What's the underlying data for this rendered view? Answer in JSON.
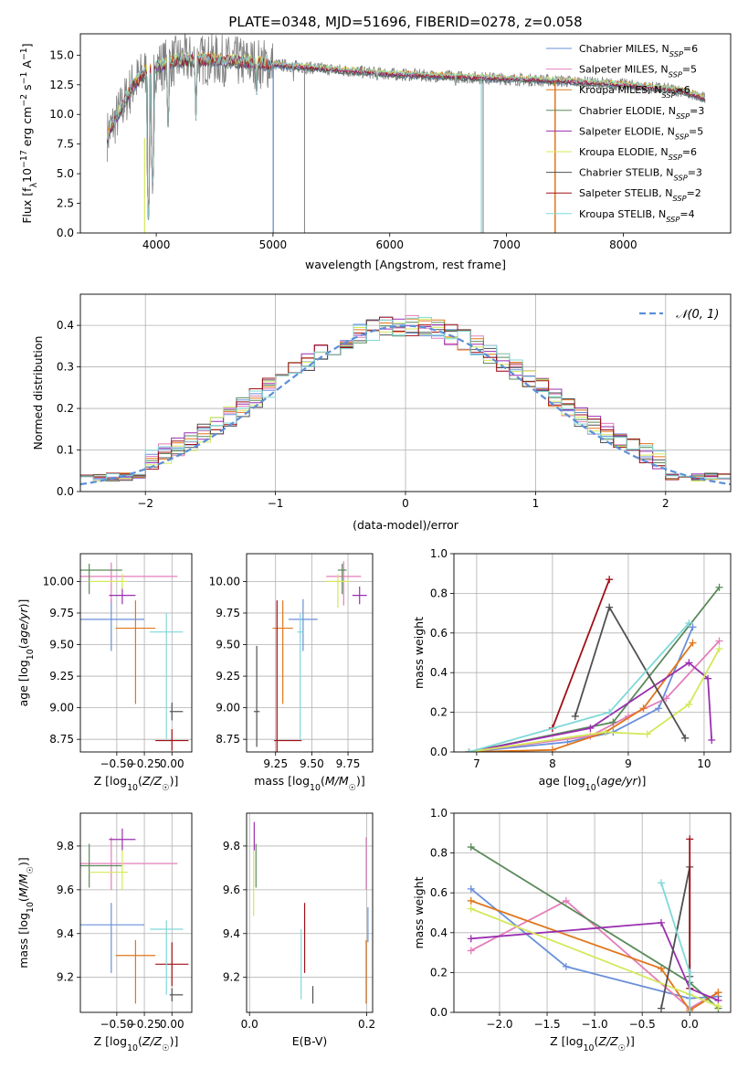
{
  "colors": {
    "chabrier_miles": "#6a8fd8",
    "salpeter_miles": "#e47ebb",
    "kroupa_miles": "#e0761c",
    "chabrier_elodie": "#5a8a5a",
    "salpeter_elodie": "#9a2fb0",
    "kroupa_elodie": "#d4e85a",
    "chabrier_stelib": "#505050",
    "salpeter_stelib": "#a01018",
    "kroupa_stelib": "#80d8d8",
    "data": "#808080",
    "normal": "#5b8fd8"
  },
  "chart_data": [
    {
      "id": "spectrum",
      "type": "line",
      "title": "PLATE=0348, MJD=51696, FIBERID=0278, z=0.058",
      "xlabel": "wavelength [Angstrom, rest frame]",
      "ylabel": "Flux [f_λ10^-17 erg cm^-2 s^-1 A^-1]",
      "xlim": [
        3350,
        8920
      ],
      "ylim": [
        0,
        16.8
      ],
      "xticks": [
        4000,
        5000,
        6000,
        7000,
        8000
      ],
      "yticks": [
        0.0,
        2.5,
        5.0,
        7.5,
        10.0,
        12.5,
        15.0
      ],
      "legend_position": "top-right",
      "series": [
        {
          "name": "Chabrier MILES, N_SSP=6"
        },
        {
          "name": "Salpeter MILES, N_SSP=5"
        },
        {
          "name": "Kroupa MILES, N_SSP=6"
        },
        {
          "name": "Chabrier ELODIE, N_SSP=3"
        },
        {
          "name": "Salpeter ELODIE, N_SSP=5"
        },
        {
          "name": "Kroupa ELODIE, N_SSP=6"
        },
        {
          "name": "Chabrier STELIB, N_SSP=3"
        },
        {
          "name": "Salpeter STELIB, N_SSP=2"
        },
        {
          "name": "Kroupa STELIB, N_SSP=4"
        }
      ],
      "continuum": [
        [
          3580,
          8.2
        ],
        [
          3700,
          10.5
        ],
        [
          3800,
          12.5
        ],
        [
          3900,
          13.5
        ],
        [
          4000,
          14.0
        ],
        [
          4200,
          14.6
        ],
        [
          4500,
          14.6
        ],
        [
          5000,
          14.2
        ],
        [
          5500,
          13.8
        ],
        [
          6000,
          13.4
        ],
        [
          6500,
          13.2
        ],
        [
          7000,
          13.0
        ],
        [
          7500,
          12.8
        ],
        [
          8000,
          12.5
        ],
        [
          8500,
          12.0
        ],
        [
          8700,
          11.3
        ]
      ],
      "model_absorptions": [
        [
          3934,
          0.2
        ],
        [
          3969,
          2.8
        ],
        [
          4102,
          8.0
        ],
        [
          4340,
          9.5
        ],
        [
          4861,
          11.2
        ],
        [
          5175,
          12.3
        ],
        [
          5890,
          12.0
        ],
        [
          6563,
          12.0
        ],
        [
          7050,
          12.2
        ]
      ],
      "model_spikes": [
        [
          5002,
          0.0
        ],
        [
          6785,
          0.0
        ],
        [
          7415,
          0.0
        ]
      ],
      "data_spikes": [
        [
          5002,
          0.0
        ],
        [
          5270,
          0.0
        ],
        [
          6800,
          0.0
        ],
        [
          7418,
          0.0
        ]
      ]
    },
    {
      "id": "residuals",
      "type": "histogram",
      "xlabel": "(data-model)/error",
      "ylabel": "Normed distribution",
      "xlim": [
        -2.5,
        2.5
      ],
      "ylim": [
        0,
        0.475
      ],
      "xticks": [
        -2,
        -1,
        0,
        1,
        2
      ],
      "yticks": [
        0.0,
        0.1,
        0.2,
        0.3,
        0.4
      ],
      "grid": true,
      "legend_position": "top-right",
      "reference_curve": {
        "name": "𝒩(0, 1)",
        "mean": 0,
        "sd": 1
      }
    },
    {
      "id": "age-vs-Z",
      "type": "errorbar",
      "xlabel": "Z [log10(Z/Z☉)]",
      "ylabel": "age [log10(age/yr)]",
      "xlim": [
        -0.83,
        0.18
      ],
      "ylim": [
        8.65,
        10.22
      ],
      "xticks": [
        -0.5,
        -0.25,
        0.0
      ],
      "yticks": [
        8.75,
        9.0,
        9.25,
        9.5,
        9.75,
        10.0
      ],
      "points": [
        {
          "x": -0.55,
          "xerr": [
            0.3,
            0.3
          ],
          "y": 9.7,
          "yerr": [
            0.25,
            0.16
          ]
        },
        {
          "x": -0.55,
          "xerr": [
            0.3,
            0.6
          ],
          "y": 10.04,
          "yerr": [
            0.21,
            0.11
          ]
        },
        {
          "x": -0.33,
          "xerr": [
            0.18,
            0.18
          ],
          "y": 9.63,
          "yerr": [
            0.6,
            0.22
          ]
        },
        {
          "x": -0.75,
          "xerr": [
            0.08,
            0.3
          ],
          "y": 10.09,
          "yerr": [
            0.19,
            0.05
          ]
        },
        {
          "x": -0.45,
          "xerr": [
            0.12,
            0.12
          ],
          "y": 9.89,
          "yerr": [
            0.07,
            0.07
          ]
        },
        {
          "x": -0.45,
          "xerr": [
            0.3,
            0.05
          ],
          "y": 10.0,
          "yerr": [
            0.06,
            0.06
          ]
        },
        {
          "x": 0.0,
          "xerr": [
            0.02,
            0.1
          ],
          "y": 8.97,
          "yerr": [
            0.07,
            0.07
          ]
        },
        {
          "x": 0.0,
          "xerr": [
            0.15,
            0.15
          ],
          "y": 8.74,
          "yerr": [
            0.08,
            0.09
          ]
        },
        {
          "x": -0.05,
          "xerr": [
            0.15,
            0.15
          ],
          "y": 9.6,
          "yerr": [
            0.85,
            0.15
          ]
        }
      ]
    },
    {
      "id": "age-vs-mass",
      "type": "errorbar",
      "xlabel": "mass [log10(M/M☉)]",
      "ylabel": "",
      "xlim": [
        9.05,
        9.92
      ],
      "ylim": [
        8.65,
        10.22
      ],
      "xticks": [
        9.25,
        9.5,
        9.75
      ],
      "yticks": [
        8.75,
        9.0,
        9.25,
        9.5,
        9.75,
        10.0
      ],
      "points": [
        {
          "x": 9.44,
          "xerr": [
            0.1,
            0.1
          ],
          "y": 9.7,
          "yerr": [
            0.25,
            0.16
          ]
        },
        {
          "x": 9.72,
          "xerr": [
            0.12,
            0.12
          ],
          "y": 10.04,
          "yerr": [
            0.23,
            0.12
          ]
        },
        {
          "x": 9.3,
          "xerr": [
            0.07,
            0.07
          ],
          "y": 9.63,
          "yerr": [
            0.6,
            0.22
          ]
        },
        {
          "x": 9.71,
          "xerr": [
            0.03,
            0.03
          ],
          "y": 10.09,
          "yerr": [
            0.19,
            0.05
          ]
        },
        {
          "x": 9.83,
          "xerr": [
            0.05,
            0.05
          ],
          "y": 9.89,
          "yerr": [
            0.07,
            0.07
          ]
        },
        {
          "x": 9.68,
          "xerr": [
            0.08,
            0.08
          ],
          "y": 10.0,
          "yerr": [
            0.21,
            0.06
          ]
        },
        {
          "x": 9.12,
          "xerr": [
            0.02,
            0.02
          ],
          "y": 8.97,
          "yerr": [
            0.28,
            0.52
          ]
        },
        {
          "x": 9.26,
          "xerr": [
            0.02,
            0.17
          ],
          "y": 8.74,
          "yerr": [
            0.09,
            1.11
          ]
        },
        {
          "x": 9.42,
          "xerr": [
            0.02,
            0.02
          ],
          "y": 9.6,
          "yerr": [
            0.85,
            0.15
          ]
        }
      ]
    },
    {
      "id": "weight-vs-age",
      "type": "line",
      "xlabel": "age [log10(age/yr)]",
      "ylabel": "mass weight",
      "xlim": [
        6.7,
        10.35
      ],
      "ylim": [
        0.0,
        1.0
      ],
      "xticks": [
        7,
        8,
        9,
        10
      ],
      "yticks": [
        0.0,
        0.2,
        0.4,
        0.6,
        0.8,
        1.0
      ],
      "grid": true,
      "series": [
        {
          "x": [
            6.9,
            8.2,
            8.8,
            9.4,
            9.85
          ],
          "y": [
            0.0,
            0.05,
            0.1,
            0.22,
            0.63
          ]
        },
        {
          "x": [
            6.9,
            8.5,
            9.0,
            9.5,
            10.2
          ],
          "y": [
            0.0,
            0.08,
            0.18,
            0.27,
            0.56
          ]
        },
        {
          "x": [
            6.9,
            8.0,
            8.7,
            9.2,
            9.85
          ],
          "y": [
            0.0,
            0.01,
            0.1,
            0.22,
            0.55
          ]
        },
        {
          "x": [
            6.9,
            8.8,
            10.2
          ],
          "y": [
            0.0,
            0.15,
            0.83
          ]
        },
        {
          "x": [
            6.9,
            8.5,
            9.8,
            10.05,
            10.1
          ],
          "y": [
            0.0,
            0.12,
            0.45,
            0.37,
            0.06
          ]
        },
        {
          "x": [
            6.9,
            8.7,
            9.25,
            9.8,
            10.2
          ],
          "y": [
            0.0,
            0.1,
            0.09,
            0.24,
            0.52
          ]
        },
        {
          "x": [
            8.3,
            8.75,
            9.75
          ],
          "y": [
            0.18,
            0.73,
            0.07
          ]
        },
        {
          "x": [
            8.0,
            8.75
          ],
          "y": [
            0.12,
            0.87
          ]
        },
        {
          "x": [
            6.9,
            8.75,
            9.8
          ],
          "y": [
            0.0,
            0.2,
            0.65
          ]
        }
      ]
    },
    {
      "id": "mass-vs-Z",
      "type": "errorbar",
      "xlabel": "Z [log10(Z/Z☉)]",
      "ylabel": "mass [log10(M/M☉)]",
      "xlim": [
        -0.83,
        0.18
      ],
      "ylim": [
        9.04,
        9.95
      ],
      "xticks": [
        -0.5,
        -0.25,
        0.0
      ],
      "yticks": [
        9.2,
        9.4,
        9.6,
        9.8
      ],
      "points": [
        {
          "x": -0.55,
          "xerr": [
            0.3,
            0.3
          ],
          "y": 9.44,
          "yerr": [
            0.22,
            0.1
          ]
        },
        {
          "x": -0.55,
          "xerr": [
            0.3,
            0.6
          ],
          "y": 9.72,
          "yerr": [
            0.12,
            0.12
          ]
        },
        {
          "x": -0.33,
          "xerr": [
            0.18,
            0.18
          ],
          "y": 9.3,
          "yerr": [
            0.22,
            0.07
          ]
        },
        {
          "x": -0.75,
          "xerr": [
            0.08,
            0.3
          ],
          "y": 9.71,
          "yerr": [
            0.1,
            0.1
          ]
        },
        {
          "x": -0.45,
          "xerr": [
            0.12,
            0.12
          ],
          "y": 9.83,
          "yerr": [
            0.05,
            0.05
          ]
        },
        {
          "x": -0.45,
          "xerr": [
            0.3,
            0.05
          ],
          "y": 9.68,
          "yerr": [
            0.08,
            0.1
          ]
        },
        {
          "x": 0.0,
          "xerr": [
            0.02,
            0.1
          ],
          "y": 9.12,
          "yerr": [
            0.03,
            0.03
          ]
        },
        {
          "x": 0.0,
          "xerr": [
            0.15,
            0.15
          ],
          "y": 9.26,
          "yerr": [
            0.1,
            0.1
          ]
        },
        {
          "x": -0.05,
          "xerr": [
            0.15,
            0.15
          ],
          "y": 9.42,
          "yerr": [
            0.3,
            0.04
          ]
        }
      ]
    },
    {
      "id": "mass-vs-EBV",
      "type": "errorbar",
      "xlabel": "E(B-V)",
      "ylabel": "",
      "xlim": [
        -0.005,
        0.21
      ],
      "ylim": [
        9.04,
        9.95
      ],
      "xticks": [
        0.0,
        0.2
      ],
      "yticks": [
        9.2,
        9.4,
        9.6,
        9.8
      ],
      "points": [
        {
          "x": 0.202,
          "y": 9.44,
          "yerr": [
            0.08,
            0.08
          ]
        },
        {
          "x": 0.199,
          "y": 9.72,
          "yerr": [
            0.12,
            0.12
          ]
        },
        {
          "x": 0.199,
          "y": 9.3,
          "yerr": [
            0.22,
            0.07
          ]
        },
        {
          "x": 0.011,
          "y": 9.71,
          "yerr": [
            0.1,
            0.1
          ]
        },
        {
          "x": 0.008,
          "y": 9.83,
          "yerr": [
            0.05,
            0.08
          ]
        },
        {
          "x": 0.007,
          "y": 9.68,
          "yerr": [
            0.2,
            0.1
          ]
        },
        {
          "x": 0.108,
          "y": 9.12,
          "yerr": [
            0.04,
            0.04
          ]
        },
        {
          "x": 0.094,
          "y": 9.38,
          "yerr": [
            0.16,
            0.16
          ]
        },
        {
          "x": 0.088,
          "y": 9.26,
          "yerr": [
            0.16,
            0.16
          ]
        }
      ]
    },
    {
      "id": "weight-vs-Z",
      "type": "line",
      "xlabel": "Z [log10(Z/Z☉)]",
      "ylabel": "mass weight",
      "xlim": [
        -2.48,
        0.43
      ],
      "ylim": [
        0.0,
        1.0
      ],
      "xticks": [
        -2.0,
        -1.5,
        -1.0,
        -0.5,
        0.0
      ],
      "yticks": [
        0.0,
        0.2,
        0.4,
        0.6,
        0.8,
        1.0
      ],
      "grid": true,
      "series": [
        {
          "x": [
            -2.3,
            -1.3,
            0.0,
            0.3
          ],
          "y": [
            0.62,
            0.23,
            0.07,
            0.08
          ]
        },
        {
          "x": [
            -2.3,
            -1.3,
            0.0,
            0.3
          ],
          "y": [
            0.31,
            0.56,
            0.02,
            0.1
          ]
        },
        {
          "x": [
            -2.3,
            -0.3,
            0.0,
            0.3
          ],
          "y": [
            0.56,
            0.22,
            0.01,
            0.1
          ]
        },
        {
          "x": [
            -2.3,
            0.0,
            0.3
          ],
          "y": [
            0.83,
            0.15,
            0.02
          ]
        },
        {
          "x": [
            -2.3,
            -0.3,
            0.0,
            0.3
          ],
          "y": [
            0.37,
            0.45,
            0.12,
            0.06
          ]
        },
        {
          "x": [
            -2.3,
            0.0,
            0.3
          ],
          "y": [
            0.52,
            0.09,
            0.03
          ]
        },
        {
          "x": [
            -0.3,
            0.0,
            0.0
          ],
          "y": [
            0.02,
            0.73,
            0.18
          ]
        },
        {
          "x": [
            0.0,
            0.0
          ],
          "y": [
            0.87,
            0.12
          ]
        },
        {
          "x": [
            -0.3,
            0.0,
            0.0
          ],
          "y": [
            0.65,
            0.2,
            0.0
          ]
        }
      ]
    }
  ]
}
